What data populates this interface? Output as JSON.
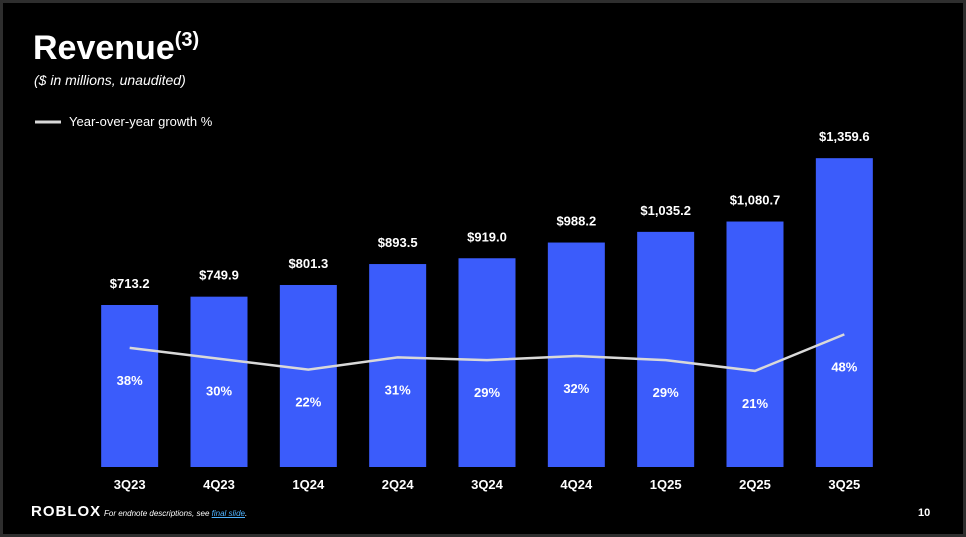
{
  "chart_data": {
    "type": "bar",
    "title": "Revenue",
    "title_superscript": "(3)",
    "subtitle": "($ in millions, unaudited)",
    "categories": [
      "3Q23",
      "4Q23",
      "1Q24",
      "2Q24",
      "3Q24",
      "4Q24",
      "1Q25",
      "2Q25",
      "3Q25"
    ],
    "series": [
      {
        "type": "bar",
        "color": "#3b5cfb",
        "values": [
          713.2,
          749.9,
          801.3,
          893.5,
          919.0,
          988.2,
          1035.2,
          1080.7,
          1359.6
        ],
        "value_labels": [
          "$713.2",
          "$749.9",
          "$801.3",
          "$893.5",
          "$919.0",
          "$988.2",
          "$1,035.2",
          "$1,080.7",
          "$1,359.6"
        ]
      },
      {
        "type": "line",
        "name": "Year-over-year growth %",
        "color": "#d9d9d9",
        "axis": "y2",
        "values": [
          38,
          30,
          22,
          31,
          29,
          32,
          29,
          21,
          48
        ],
        "value_labels": [
          "38%",
          "30%",
          "22%",
          "31%",
          "29%",
          "32%",
          "29%",
          "21%",
          "48%"
        ]
      }
    ],
    "ylim": [
      0,
      1400
    ],
    "y2lim": [
      -50,
      185
    ],
    "legend": "top-left"
  },
  "footer": {
    "logo": "ROBLOX",
    "note": "For endnote descriptions, see ",
    "link": "final slide",
    "note_end": ".",
    "page": "10"
  }
}
